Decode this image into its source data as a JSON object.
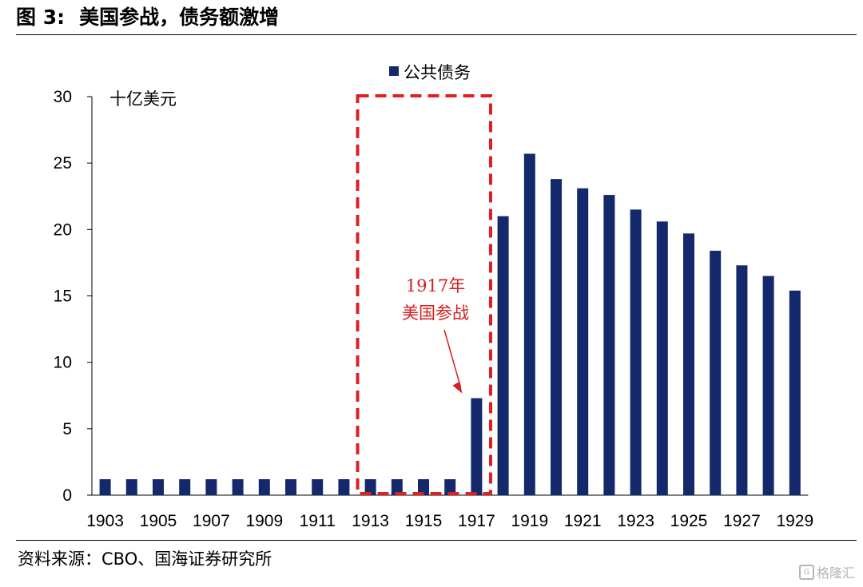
{
  "figure": {
    "number": "图 3:",
    "title": "美国参战，债务额激增",
    "source": "资料来源：CBO、国海证券研究所",
    "watermark": "格隆汇"
  },
  "colors": {
    "bar": "#14296b",
    "highlight": "#e02020",
    "annotation": "#d42020"
  },
  "chart_data": {
    "type": "bar",
    "title": "美国参战，债务额激增",
    "ylabel": "十亿美元",
    "xlabel": "",
    "ylim": [
      0,
      30
    ],
    "yticks": [
      0,
      5,
      10,
      15,
      20,
      25,
      30
    ],
    "legend": {
      "label": "公共债务",
      "position": "top-center"
    },
    "grid": false,
    "categories": [
      "1903",
      "1904",
      "1905",
      "1906",
      "1907",
      "1908",
      "1909",
      "1910",
      "1911",
      "1912",
      "1913",
      "1914",
      "1915",
      "1916",
      "1917",
      "1918",
      "1919",
      "1920",
      "1921",
      "1922",
      "1923",
      "1924",
      "1925",
      "1926",
      "1927",
      "1928",
      "1929"
    ],
    "xtick_labels": [
      "1903",
      "1905",
      "1907",
      "1909",
      "1911",
      "1913",
      "1915",
      "1917",
      "1919",
      "1921",
      "1923",
      "1925",
      "1927",
      "1929"
    ],
    "series": [
      {
        "name": "公共债务",
        "values": [
          1.2,
          1.2,
          1.2,
          1.2,
          1.2,
          1.2,
          1.2,
          1.2,
          1.2,
          1.2,
          1.2,
          1.2,
          1.2,
          1.2,
          7.3,
          21.0,
          25.7,
          23.8,
          23.1,
          22.6,
          21.5,
          20.6,
          19.7,
          18.4,
          17.3,
          16.5,
          15.4
        ]
      }
    ],
    "highlight": {
      "from": "1913",
      "to": "1917",
      "style": "dashed-red-box"
    },
    "annotation": {
      "line1": "1917年",
      "line2": "美国参战",
      "target": "1917"
    }
  }
}
